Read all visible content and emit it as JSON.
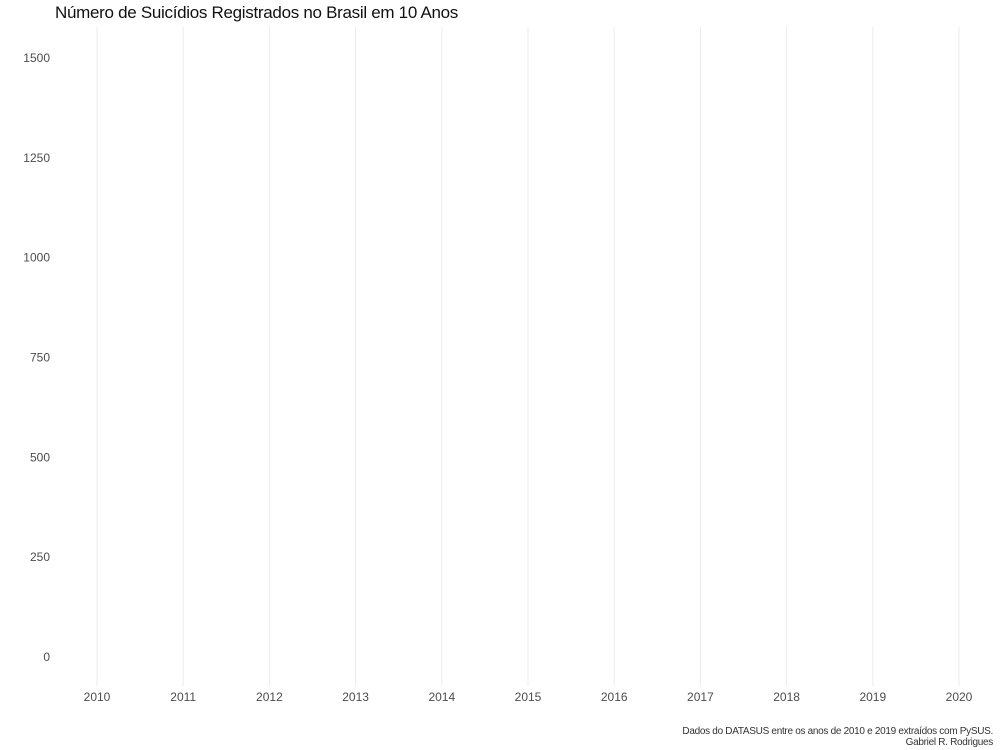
{
  "chart_data": {
    "type": "line",
    "title": "Número de Suicídios Registrados no Brasil em 10 Anos",
    "x_ticks": [
      "2010",
      "2011",
      "2012",
      "2013",
      "2014",
      "2015",
      "2016",
      "2017",
      "2018",
      "2019",
      "2020"
    ],
    "y_ticks": [
      "0",
      "250",
      "500",
      "750",
      "1000",
      "1250",
      "1500"
    ],
    "xlim": [
      2010,
      2020
    ],
    "ylim": [
      0,
      1500
    ],
    "grid": "vertical",
    "series": []
  },
  "caption": {
    "line1": "Dados do DATASUS entre os anos de 2010 e 2019 extraídos com PySUS.",
    "line2": "Gabriel R. Rodrigues"
  },
  "colors": {
    "grid": "#ebebeb",
    "tick_text": "#4d4d4d"
  }
}
